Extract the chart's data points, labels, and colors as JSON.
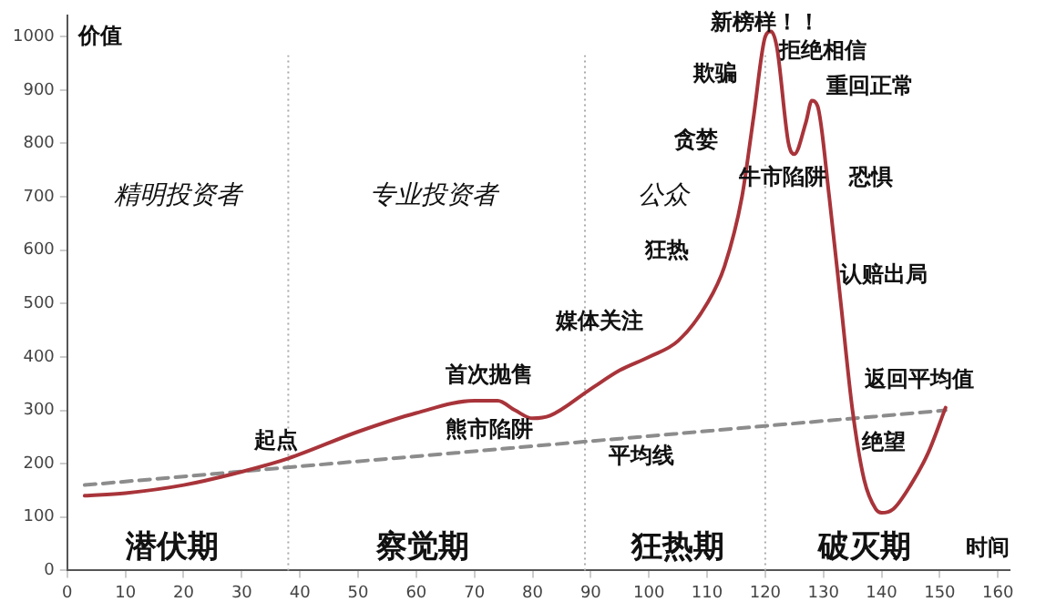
{
  "chart_data": {
    "type": "line",
    "xlabel": "时间",
    "ylabel": "价值",
    "xlim": [
      0,
      162
    ],
    "ylim": [
      0,
      1040
    ],
    "xticks": [
      0,
      10,
      20,
      30,
      40,
      50,
      60,
      70,
      80,
      90,
      100,
      110,
      120,
      130,
      140,
      150,
      160
    ],
    "yticks": [
      0,
      100,
      200,
      300,
      400,
      500,
      600,
      700,
      800,
      900,
      1000
    ],
    "grid": false,
    "legend": false,
    "marker": "none",
    "series": [
      {
        "color": "#a8343a",
        "line_style": "solid",
        "x": [
          3,
          10,
          20,
          30,
          38,
          50,
          60,
          70,
          74,
          77,
          80,
          83,
          90,
          95,
          100,
          105,
          110,
          113,
          116,
          118,
          120,
          121,
          122,
          124,
          125,
          127,
          128,
          129,
          131,
          133,
          135,
          137,
          139,
          140,
          142,
          145,
          148,
          151
        ],
        "values": [
          140,
          145,
          160,
          185,
          210,
          260,
          295,
          318,
          318,
          300,
          285,
          290,
          340,
          375,
          400,
          430,
          500,
          570,
          700,
          850,
          1000,
          1010,
          980,
          800,
          780,
          840,
          880,
          870,
          700,
          500,
          300,
          170,
          115,
          108,
          115,
          160,
          220,
          305
        ]
      },
      {
        "color": "#8c8c8c",
        "line_style": "dashed",
        "x": [
          3,
          151
        ],
        "values": [
          160,
          300
        ]
      }
    ],
    "ref_lines": [
      {
        "axis": "x",
        "value": 38,
        "label": null,
        "color": "#aaaaaa",
        "line_style": "dotted"
      },
      {
        "axis": "x",
        "value": 89,
        "label": null,
        "color": "#aaaaaa",
        "line_style": "dotted"
      },
      {
        "axis": "x",
        "value": 120,
        "label": null,
        "color": "#aaaaaa",
        "line_style": "dotted"
      }
    ],
    "annotations": [
      "精明投资者",
      "专业投资者",
      "公众",
      "潜伏期",
      "察觉期",
      "狂热期",
      "破灭期",
      "起点",
      "首次抛售",
      "熊市陷阱",
      "平均线",
      "媒体关注",
      "狂热",
      "贪婪",
      "欺骗",
      "新榜样！！",
      "拒绝相信",
      "重回正常",
      "牛市陷阱",
      "恐惧",
      "认赔出局",
      "返回平均值",
      "绝望"
    ]
  }
}
